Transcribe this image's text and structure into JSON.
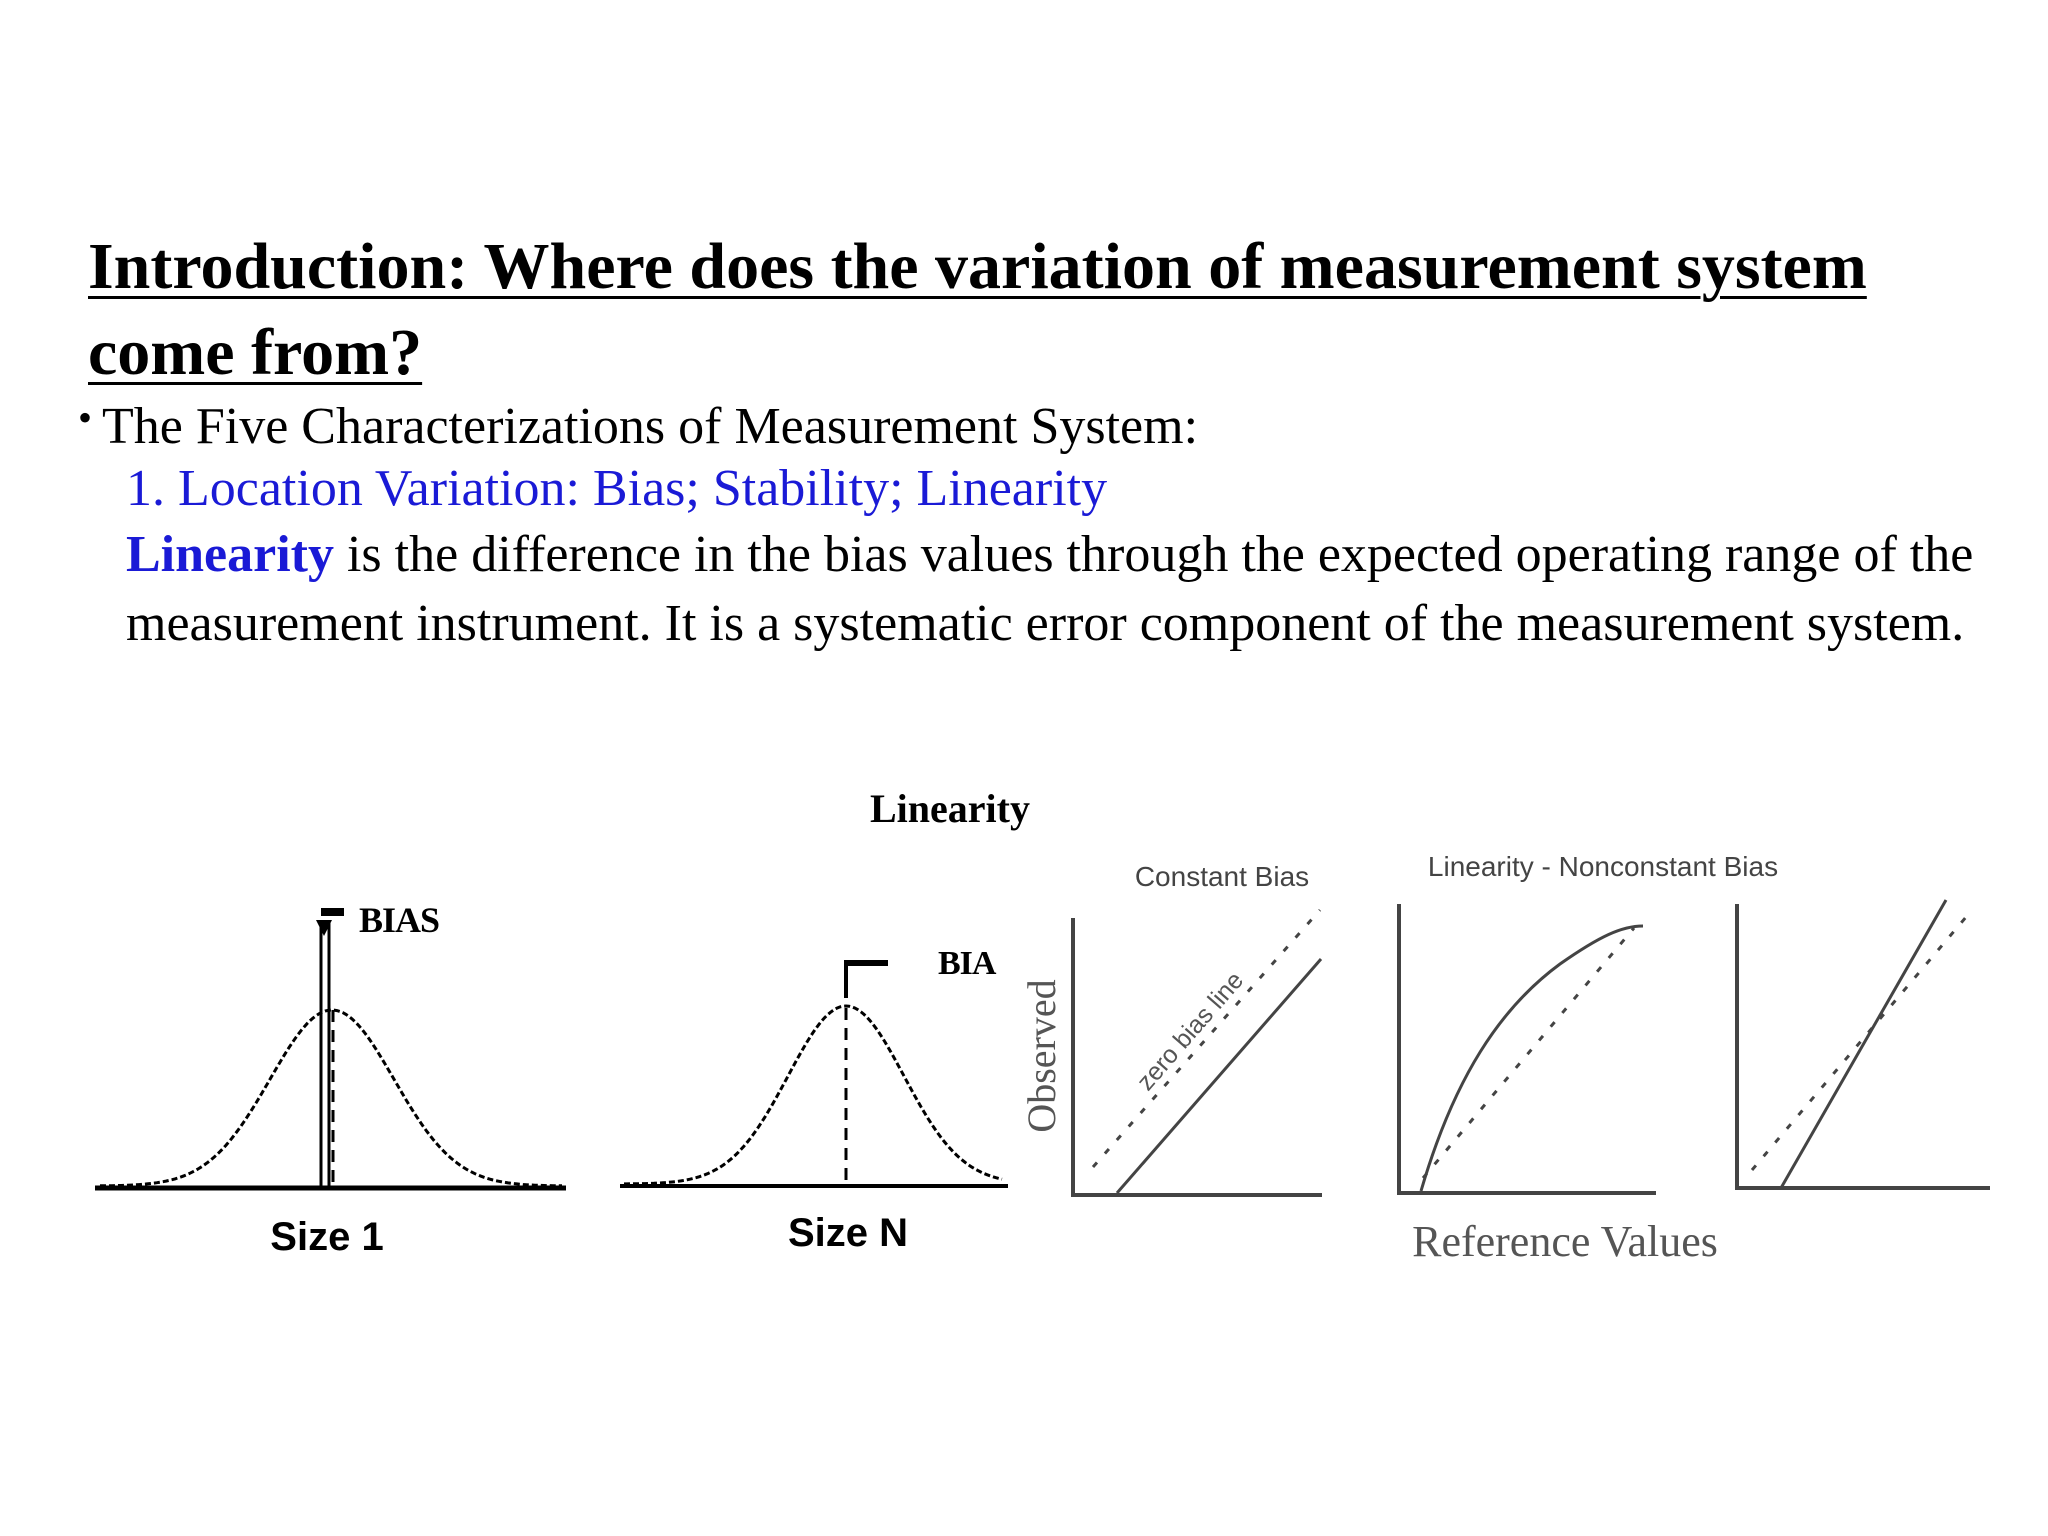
{
  "slide": {
    "title": "Introduction: Where does the variation of measurement system come from?",
    "bullet": "The Five Characterizations of Measurement System:",
    "subheading": "1. Location Variation: Bias; Stability; Linearity",
    "definition_term": "Linearity",
    "definition_text": " is the difference in the bias values through the expected operating range of the measurement instrument. It is a systematic error component of the measurement system."
  },
  "figure": {
    "caption": "Linearity",
    "curve1": {
      "bias_label": "BIAS",
      "size_label": "Size 1"
    },
    "curve2": {
      "bias_label": "BIA",
      "size_label": "Size N"
    },
    "plot1": {
      "title": "Constant Bias",
      "line_label": "zero bias line"
    },
    "plot2": {
      "title": "Linearity - Nonconstant Bias"
    },
    "ylabel": "Observed",
    "xlabel": "Reference Values"
  }
}
